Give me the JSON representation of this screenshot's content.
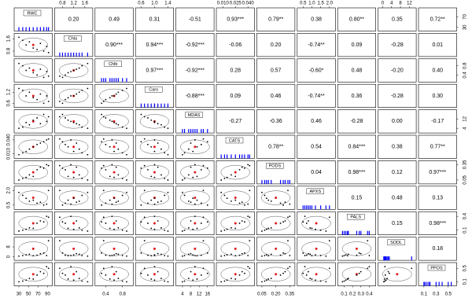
{
  "chart_data": {
    "type": "pairs",
    "variables": [
      {
        "name": "RWC",
        "values": [
          30,
          38,
          45,
          52,
          60,
          68,
          75,
          82,
          88,
          92
        ],
        "xlim": [
          25,
          95
        ],
        "xticks": [
          30,
          50,
          70,
          90
        ],
        "ylim": [
          25,
          95
        ],
        "yticks": [
          30,
          70
        ]
      },
      {
        "name": "Chla",
        "values": [
          1.7,
          1.5,
          1.2,
          1.4,
          1.0,
          0.9,
          1.3,
          0.8,
          1.1,
          0.7
        ],
        "xlim": [
          0.6,
          1.8
        ],
        "xticks": [
          0.8,
          1.2,
          1.6
        ],
        "ylim": [
          0.6,
          1.8
        ],
        "yticks": [
          0.8,
          1.6
        ]
      },
      {
        "name": "Chlb",
        "values": [
          0.9,
          0.8,
          0.6,
          0.7,
          0.5,
          0.4,
          0.65,
          0.3,
          0.55,
          0.35
        ],
        "xlim": [
          0.2,
          1.0
        ],
        "xticks": [
          0.4,
          0.8
        ],
        "ylim": [
          0.2,
          1.0
        ],
        "yticks": [
          0.4,
          0.8
        ]
      },
      {
        "name": "Caro",
        "values": [
          1.4,
          1.3,
          1.0,
          1.2,
          0.9,
          0.8,
          1.1,
          0.6,
          1.0,
          0.7
        ],
        "xlim": [
          0.5,
          1.5
        ],
        "xticks": [
          0.6,
          {
            "value": 1,
            "label": "1.0"
          },
          1.4
        ],
        "ylim": [
          0.5,
          1.5
        ],
        "yticks": [
          0.6,
          1.2
        ]
      },
      {
        "name": "MDAS",
        "values": [
          4,
          5,
          9,
          7,
          11,
          13,
          8,
          16,
          10,
          14
        ],
        "xlim": [
          2,
          18
        ],
        "xticks": [
          4,
          8,
          12,
          16
        ],
        "ylim": [
          2,
          18
        ],
        "yticks": [
          4,
          12
        ]
      },
      {
        "name": "CATS",
        "values": [
          0.008,
          0.012,
          0.015,
          0.02,
          0.025,
          0.03,
          0.033,
          0.036,
          0.04,
          0.042
        ],
        "xlim": [
          0.005,
          0.045
        ],
        "xticks": [
          {
            "value": 0.01,
            "label": "0.010"
          },
          0.025,
          {
            "value": 0.04,
            "label": "0.040"
          }
        ],
        "ylim": [
          0.005,
          0.045
        ],
        "yticks": [
          {
            "value": 0.01,
            "label": "0.010"
          },
          {
            "value": 0.04,
            "label": "0.040"
          }
        ]
      },
      {
        "name": "PODS",
        "values": [
          0.05,
          0.08,
          0.1,
          0.15,
          0.12,
          0.25,
          0.3,
          0.28,
          0.35,
          0.33
        ],
        "xlim": [
          0.02,
          0.38
        ],
        "xticks": [
          0.05,
          {
            "value": 0.2,
            "label": "0.20"
          },
          0.35
        ],
        "ylim": [
          0.02,
          0.38
        ],
        "yticks": [
          0.05,
          0.35
        ]
      },
      {
        "name": "APXS",
        "values": [
          1.8,
          1.5,
          1.2,
          0.9,
          1.0,
          0.7,
          0.8,
          0.5,
          0.6,
          2.0
        ],
        "xlim": [
          0.3,
          2.2
        ],
        "xticks": [
          0.5,
          {
            "value": 1,
            "label": "1.0"
          },
          1.5,
          {
            "value": 2,
            "label": "2.0"
          }
        ],
        "ylim": [
          0.3,
          2.2
        ],
        "yticks": [
          0.5,
          {
            "value": 2,
            "label": "2.0"
          }
        ]
      },
      {
        "name": "PALS",
        "values": [
          0.08,
          0.1,
          0.12,
          0.15,
          0.14,
          0.25,
          0.3,
          0.28,
          0.4,
          0.38
        ],
        "xlim": [
          0.05,
          0.45
        ],
        "xticks": [
          0.1,
          0.2,
          0.3,
          0.4
        ],
        "ylim": [
          0.05,
          0.45
        ],
        "yticks": [
          0.1,
          0.4
        ]
      },
      {
        "name": "SODL",
        "values": [
          0.5,
          1,
          1.5,
          2,
          0.8,
          1.2,
          2.5,
          3,
          1,
          13
        ],
        "xlim": [
          -1,
          14
        ],
        "xticks": [
          0,
          4,
          8,
          12
        ],
        "ylim": [
          -1,
          14
        ],
        "yticks": [
          0,
          8
        ]
      },
      {
        "name": "PPOS",
        "values": [
          0.1,
          0.12,
          0.15,
          0.2,
          0.18,
          0.3,
          0.4,
          0.35,
          0.55,
          0.5
        ],
        "xlim": [
          0.05,
          0.6
        ],
        "xticks": [
          0.1,
          0.3,
          0.5
        ],
        "ylim": [
          0.05,
          0.6
        ],
        "yticks": [
          0.1,
          0.5
        ]
      }
    ],
    "correlations": [
      [
        0.2,
        0.49,
        0.31,
        -0.51,
        0.93,
        0.79,
        0.38,
        0.8,
        0.35,
        0.72
      ],
      [
        0.9,
        0.94,
        -0.92,
        -0.06,
        0.2,
        -0.74,
        0.09,
        -0.28,
        0.01
      ],
      [
        0.97,
        -0.92,
        0.28,
        0.57,
        -0.6,
        0.48,
        -0.2,
        0.4
      ],
      [
        -0.88,
        0.09,
        0.46,
        -0.74,
        0.36,
        -0.28,
        0.3
      ],
      [
        -0.27,
        -0.36,
        0.46,
        -0.28,
        0.0,
        -0.17
      ],
      [
        0.78,
        0.54,
        0.84,
        0.38,
        0.77
      ],
      [
        0.04,
        0.98,
        0.12,
        0.97
      ],
      [
        0.15,
        0.48,
        0.13
      ],
      [
        0.15,
        0.98
      ],
      [
        0.18
      ]
    ],
    "correlation_labels": [
      [
        "0.20",
        "0.49",
        "0.31",
        "-0.51",
        "0.93***",
        "0.79**",
        "0.38",
        "0.80**",
        "0.35",
        "0.72**"
      ],
      [
        "0.90***",
        "0.94***",
        "-0.92***",
        "-0.06",
        "0.20",
        "-0.74**",
        "0.09",
        "-0.28",
        "0.01"
      ],
      [
        "0.97***",
        "-0.92***",
        "0.28",
        "0.57",
        "-0.60*",
        "0.48",
        "-0.20",
        "0.40"
      ],
      [
        "-0.88***",
        "0.09",
        "0.46",
        "-0.74**",
        "0.36",
        "-0.28",
        "0.30"
      ],
      [
        "-0.27",
        "-0.36",
        "0.46",
        "-0.28",
        "0.00",
        "-0.17"
      ],
      [
        "0.78**",
        "0.54",
        "0.84***",
        "0.38",
        "0.77**"
      ],
      [
        "0.04",
        "0.98***",
        "0.12",
        "0.97***"
      ],
      [
        "0.15",
        "0.48",
        "0.13"
      ],
      [
        "0.15",
        "0.98***"
      ],
      [
        "0.18"
      ]
    ],
    "point_color": "#000000",
    "fit_color": "#e31a1c",
    "hist_color": "#0000ff"
  }
}
